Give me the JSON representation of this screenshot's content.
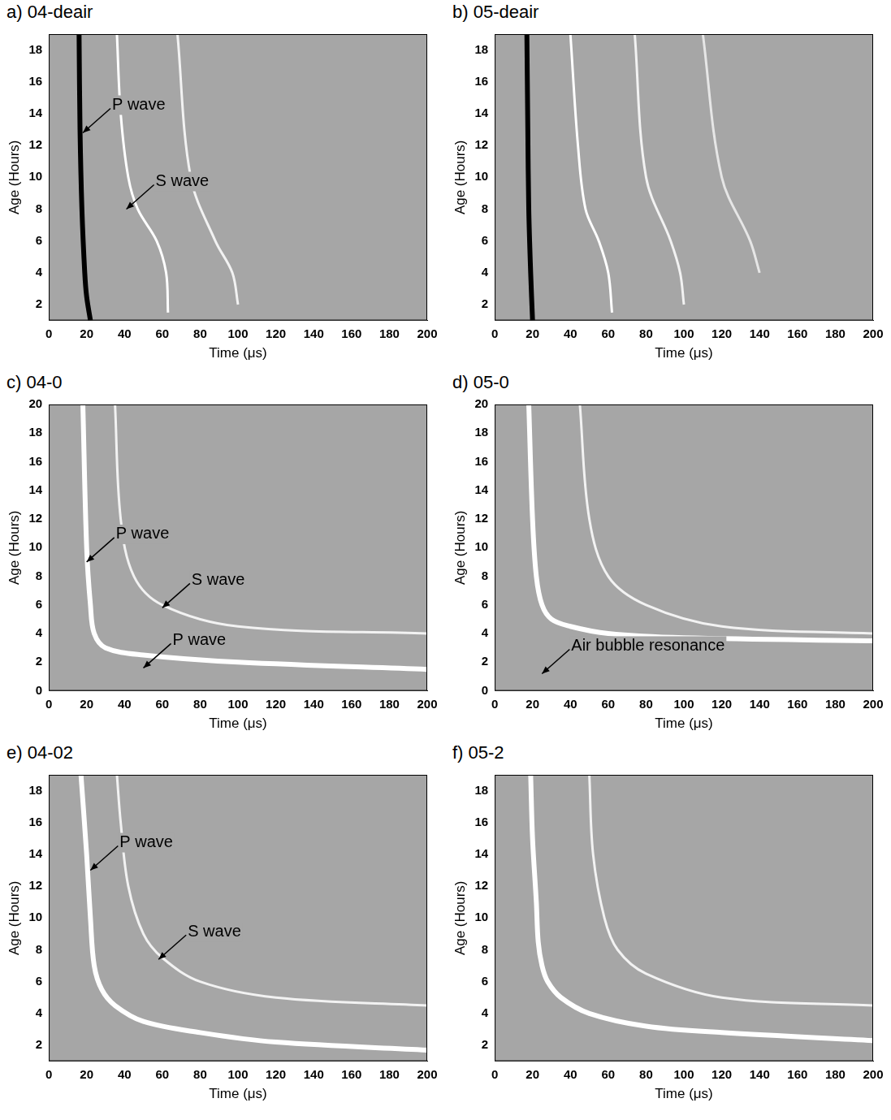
{
  "chart_data": [
    {
      "type": "line",
      "panel": "a)",
      "title": "04-deair",
      "x_label": "Time (μs)",
      "y_label": "Age (Hours)",
      "xlim": [
        0,
        200
      ],
      "xticks": [
        0,
        20,
        40,
        60,
        80,
        100,
        120,
        140,
        160,
        180,
        200
      ],
      "ylim": [
        1,
        19
      ],
      "yticks": [
        2,
        4,
        6,
        8,
        10,
        12,
        14,
        16,
        18
      ],
      "grid": false,
      "series": [
        {
          "color": "#000000",
          "x": [
            22,
            20,
            19,
            17.5,
            16.5,
            16
          ],
          "values": [
            1,
            2.5,
            4,
            8,
            13,
            19
          ]
        },
        {
          "color": "#ffffff",
          "x": [
            63,
            62,
            57,
            47,
            42,
            38,
            36
          ],
          "values": [
            1.5,
            4,
            6,
            8,
            10,
            14,
            19
          ]
        },
        {
          "color": "#f2f2f2",
          "x": [
            100,
            97,
            88,
            75,
            68
          ],
          "values": [
            2,
            4,
            6,
            10,
            19
          ]
        }
      ],
      "annotations": [
        {
          "text": "P wave",
          "x": 18,
          "y": 12.8
        },
        {
          "text": "S wave",
          "x": 41,
          "y": 8
        }
      ]
    },
    {
      "type": "line",
      "panel": "b)",
      "title": "05-deair",
      "x_label": "Time (μs)",
      "y_label": "Age (Hours)",
      "xlim": [
        0,
        200
      ],
      "xticks": [
        0,
        20,
        40,
        60,
        80,
        100,
        120,
        140,
        160,
        180,
        200
      ],
      "ylim": [
        1,
        19
      ],
      "yticks": [
        2,
        4,
        6,
        8,
        10,
        12,
        14,
        16,
        18
      ],
      "grid": false,
      "series": [
        {
          "color": "#000000",
          "x": [
            20,
            19,
            18,
            17.5,
            17
          ],
          "values": [
            1,
            4,
            8,
            13,
            19
          ]
        },
        {
          "color": "#ffffff",
          "x": [
            62,
            60,
            55,
            48,
            44,
            40
          ],
          "values": [
            1.5,
            4,
            6,
            8,
            12,
            19
          ]
        },
        {
          "color": "#f2f2f2",
          "x": [
            100,
            98,
            93,
            80,
            74
          ],
          "values": [
            2,
            4,
            6,
            10,
            19
          ]
        },
        {
          "color": "#e6e6e6",
          "x": [
            140,
            135,
            120,
            110
          ],
          "values": [
            4,
            6,
            10,
            19
          ]
        }
      ],
      "annotations": []
    },
    {
      "type": "line",
      "panel": "c)",
      "title": "04-0",
      "x_label": "Time (μs)",
      "y_label": "Age (Hours)",
      "xlim": [
        0,
        200
      ],
      "xticks": [
        0,
        20,
        40,
        60,
        80,
        100,
        120,
        140,
        160,
        180,
        200
      ],
      "ylim": [
        0,
        20
      ],
      "yticks": [
        0,
        2,
        4,
        6,
        8,
        10,
        12,
        14,
        16,
        18,
        20
      ],
      "grid": false,
      "series": [
        {
          "color": "#ffffff",
          "x": [
            200,
            100,
            50,
            30,
            24,
            22,
            20,
            18
          ],
          "values": [
            1.5,
            2,
            2.5,
            3,
            4,
            6,
            10,
            20
          ]
        },
        {
          "color": "#f2f2f2",
          "x": [
            200,
            100,
            60,
            45,
            38,
            35
          ],
          "values": [
            4,
            4.5,
            6,
            8,
            12,
            20
          ]
        }
      ],
      "annotations": [
        {
          "text": "P wave",
          "x": 20,
          "y": 9
        },
        {
          "text": "S wave",
          "x": 60,
          "y": 5.8
        },
        {
          "text": "P wave",
          "x": 50,
          "y": 1.6
        }
      ]
    },
    {
      "type": "line",
      "panel": "d)",
      "title": "05-0",
      "x_label": "Time (μs)",
      "y_label": "Age (Hours)",
      "xlim": [
        0,
        200
      ],
      "xticks": [
        0,
        20,
        40,
        60,
        80,
        100,
        120,
        140,
        160,
        180,
        200
      ],
      "ylim": [
        0,
        20
      ],
      "yticks": [
        0,
        2,
        4,
        6,
        8,
        10,
        12,
        14,
        16,
        18,
        20
      ],
      "grid": false,
      "series": [
        {
          "color": "#ffffff",
          "x": [
            200,
            100,
            60,
            40,
            30,
            25,
            22,
            20,
            18
          ],
          "values": [
            3.5,
            3.7,
            4,
            4.5,
            5,
            6,
            8,
            12,
            20
          ]
        },
        {
          "color": "#f2f2f2",
          "x": [
            200,
            120,
            80,
            60,
            50,
            45
          ],
          "values": [
            4,
            4.5,
            6,
            8,
            12,
            20
          ]
        }
      ],
      "annotations": [
        {
          "text": "Air bubble resonance",
          "x": 25,
          "y": 1.2
        }
      ]
    },
    {
      "type": "line",
      "panel": "e)",
      "title": "04-02",
      "x_label": "Time (μs)",
      "y_label": "Age (Hours)",
      "xlim": [
        0,
        200
      ],
      "xticks": [
        0,
        20,
        40,
        60,
        80,
        100,
        120,
        140,
        160,
        180,
        200
      ],
      "ylim": [
        1,
        19
      ],
      "yticks": [
        2,
        4,
        6,
        8,
        10,
        12,
        14,
        16,
        18
      ],
      "grid": false,
      "series": [
        {
          "color": "#ffffff",
          "x": [
            200,
            120,
            80,
            50,
            35,
            28,
            24,
            22,
            20,
            17
          ],
          "values": [
            1.7,
            2.2,
            2.8,
            3.5,
            4.5,
            5.5,
            7,
            10,
            14,
            19
          ]
        },
        {
          "color": "#f2f2f2",
          "x": [
            200,
            120,
            80,
            60,
            50,
            42,
            38,
            36
          ],
          "values": [
            4.5,
            5,
            6,
            7.5,
            9,
            12,
            16,
            19
          ]
        }
      ],
      "annotations": [
        {
          "text": "P wave",
          "x": 22,
          "y": 13
        },
        {
          "text": "S wave",
          "x": 58,
          "y": 7.4
        }
      ]
    },
    {
      "type": "line",
      "panel": "f)",
      "title": "05-2",
      "x_label": "Time (μs)",
      "y_label": "Age (Hours)",
      "xlim": [
        0,
        200
      ],
      "xticks": [
        0,
        20,
        40,
        60,
        80,
        100,
        120,
        140,
        160,
        180,
        200
      ],
      "ylim": [
        1,
        19
      ],
      "yticks": [
        2,
        4,
        6,
        8,
        10,
        12,
        14,
        16,
        18
      ],
      "grid": false,
      "series": [
        {
          "color": "#ffffff",
          "x": [
            200,
            120,
            80,
            50,
            35,
            28,
            25,
            23,
            22,
            20,
            19
          ],
          "values": [
            2.3,
            2.8,
            3.2,
            4,
            5,
            6,
            7,
            8.5,
            11,
            15,
            19
          ]
        },
        {
          "color": "#f2f2f2",
          "x": [
            200,
            120,
            80,
            65,
            58,
            52,
            50
          ],
          "values": [
            4.5,
            5,
            6.5,
            8,
            10,
            14,
            19
          ]
        }
      ],
      "annotations": []
    }
  ]
}
